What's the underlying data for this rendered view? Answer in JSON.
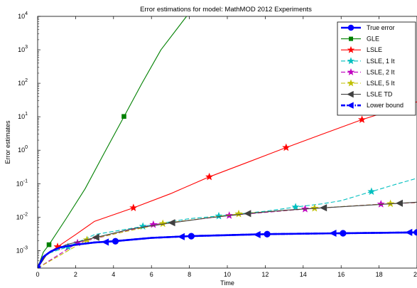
{
  "chart_data": {
    "type": "line",
    "title": "Error estimations for model: MathMOD 2012 Experiments",
    "xlabel": "Time",
    "ylabel": "Error estimates",
    "xlim": [
      0,
      20
    ],
    "ylim": [
      0.0003,
      10000
    ],
    "yscale": "log",
    "x_ticks": [
      "0",
      "2",
      "4",
      "6",
      "8",
      "10",
      "12",
      "14",
      "16",
      "18",
      "20"
    ],
    "y_ticks": [
      {
        "base": "10",
        "exp": "-3",
        "value": 0.001
      },
      {
        "base": "10",
        "exp": "-2",
        "value": 0.01
      },
      {
        "base": "10",
        "exp": "-1",
        "value": 0.1
      },
      {
        "base": "10",
        "exp": "0",
        "value": 1
      },
      {
        "base": "10",
        "exp": "1",
        "value": 10
      },
      {
        "base": "10",
        "exp": "2",
        "value": 100
      },
      {
        "base": "10",
        "exp": "3",
        "value": 1000
      },
      {
        "base": "10",
        "exp": "4",
        "value": 10000
      }
    ],
    "grid": false,
    "legend_position": "top-right",
    "series": [
      {
        "name": "True error",
        "color": "#0000ff",
        "marker": "circle",
        "line": "solid",
        "bold": true,
        "curve": [
          [
            0,
            0.0003
          ],
          [
            0.3,
            0.00065
          ],
          [
            0.7,
            0.00095
          ],
          [
            1.2,
            0.00125
          ],
          [
            2,
            0.0015
          ],
          [
            3,
            0.00175
          ],
          [
            4,
            0.0019
          ],
          [
            6,
            0.0024
          ],
          [
            8,
            0.0027
          ],
          [
            10,
            0.0029
          ],
          [
            12,
            0.0031
          ],
          [
            14,
            0.0032
          ],
          [
            16,
            0.0033
          ],
          [
            18,
            0.0034
          ],
          [
            20,
            0.0035
          ]
        ],
        "markers": [
          [
            0,
            0.0003
          ],
          [
            4.1,
            0.0019
          ],
          [
            8.1,
            0.0027
          ],
          [
            12.1,
            0.0031
          ],
          [
            16.1,
            0.0033
          ],
          [
            20,
            0.0035
          ]
        ]
      },
      {
        "name": "GLE",
        "color": "#008000",
        "marker": "square",
        "line": "solid",
        "bold": false,
        "curve": [
          [
            0,
            0.0003
          ],
          [
            0.3,
            0.0009
          ],
          [
            0.6,
            0.0015
          ],
          [
            1.5,
            0.009
          ],
          [
            2.5,
            0.07
          ],
          [
            3.5,
            0.8
          ],
          [
            4.55,
            10
          ],
          [
            5.5,
            100
          ],
          [
            6.5,
            1000
          ],
          [
            7.85,
            10000
          ]
        ],
        "markers": [
          [
            0.6,
            0.0015
          ],
          [
            4.55,
            10.2
          ]
        ]
      },
      {
        "name": "LSLE",
        "color": "#ff0000",
        "marker": "star",
        "line": "solid",
        "bold": false,
        "curve": [
          [
            0,
            0.0003
          ],
          [
            0.5,
            0.0008
          ],
          [
            1.05,
            0.0013
          ],
          [
            2,
            0.003
          ],
          [
            3,
            0.0075
          ],
          [
            5.05,
            0.019
          ],
          [
            7,
            0.05
          ],
          [
            9.05,
            0.16
          ],
          [
            11,
            0.42
          ],
          [
            13.1,
            1.2
          ],
          [
            15,
            3
          ],
          [
            17.1,
            8.2
          ],
          [
            19,
            18
          ],
          [
            20,
            28
          ]
        ],
        "markers": [
          [
            1.05,
            0.0013
          ],
          [
            5.05,
            0.019
          ],
          [
            9.05,
            0.16
          ],
          [
            13.1,
            1.2
          ],
          [
            17.1,
            8.2
          ]
        ]
      },
      {
        "name": "LSLE, 1 It",
        "color": "#00bfbf",
        "marker": "star",
        "line": "dashed",
        "bold": false,
        "curve": [
          [
            0,
            0.0003
          ],
          [
            0.5,
            0.0008
          ],
          [
            1.6,
            0.0013
          ],
          [
            3,
            0.003
          ],
          [
            5.55,
            0.0053
          ],
          [
            8,
            0.009
          ],
          [
            9.55,
            0.0108
          ],
          [
            12,
            0.015
          ],
          [
            13.6,
            0.02
          ],
          [
            15,
            0.025
          ],
          [
            16,
            0.031
          ],
          [
            17.6,
            0.058
          ],
          [
            19,
            0.1
          ],
          [
            20,
            0.145
          ]
        ],
        "markers": [
          [
            1.6,
            0.0013
          ],
          [
            5.55,
            0.0053
          ],
          [
            9.55,
            0.0108
          ],
          [
            13.6,
            0.02
          ],
          [
            17.6,
            0.058
          ]
        ]
      },
      {
        "name": "LSLE, 2 It",
        "color": "#bf00bf",
        "marker": "star",
        "line": "dashed",
        "bold": false,
        "curve": [
          [
            0,
            0.0003
          ],
          [
            2.1,
            0.0017
          ],
          [
            6.1,
            0.006
          ],
          [
            10.1,
            0.0112
          ],
          [
            14.1,
            0.0175
          ],
          [
            18.1,
            0.0245
          ],
          [
            20,
            0.027
          ]
        ],
        "markers": [
          [
            2.1,
            0.0017
          ],
          [
            6.1,
            0.006
          ],
          [
            10.1,
            0.0112
          ],
          [
            14.1,
            0.0175
          ],
          [
            18.1,
            0.0245
          ]
        ]
      },
      {
        "name": "LSLE, 5 It",
        "color": "#bfbf00",
        "marker": "star",
        "line": "dashed",
        "bold": false,
        "curve": [
          [
            0,
            0.0003
          ],
          [
            2.6,
            0.0021
          ],
          [
            6.6,
            0.0064
          ],
          [
            10.6,
            0.0125
          ],
          [
            14.6,
            0.0185
          ],
          [
            18.6,
            0.0252
          ],
          [
            20,
            0.0275
          ]
        ],
        "markers": [
          [
            2.6,
            0.0021
          ],
          [
            6.6,
            0.0064
          ],
          [
            10.6,
            0.0125
          ],
          [
            14.6,
            0.0185
          ],
          [
            18.6,
            0.0252
          ]
        ]
      },
      {
        "name": "LSLE TD",
        "color": "#404040",
        "marker": "triangle-left",
        "line": "solid",
        "bold": false,
        "curve": [
          [
            0,
            0.0003
          ],
          [
            0.5,
            0.0008
          ],
          [
            1.5,
            0.0015
          ],
          [
            3.1,
            0.0025
          ],
          [
            5,
            0.0045
          ],
          [
            7.1,
            0.0068
          ],
          [
            9,
            0.0095
          ],
          [
            11.1,
            0.0128
          ],
          [
            13,
            0.016
          ],
          [
            15.1,
            0.019
          ],
          [
            17,
            0.022
          ],
          [
            19.1,
            0.026
          ],
          [
            20,
            0.028
          ]
        ],
        "markers": [
          [
            3.1,
            0.0025
          ],
          [
            7.1,
            0.0068
          ],
          [
            11.1,
            0.0128
          ],
          [
            15.1,
            0.019
          ],
          [
            19.1,
            0.026
          ]
        ]
      },
      {
        "name": "Lower bound",
        "color": "#0000ff",
        "marker": "triangle-left",
        "line": "dashdot",
        "bold": true,
        "curve": [
          [
            0,
            0.0003
          ],
          [
            0.3,
            0.00065
          ],
          [
            0.7,
            0.00095
          ],
          [
            1.2,
            0.00125
          ],
          [
            2,
            0.0015
          ],
          [
            3,
            0.00175
          ],
          [
            4,
            0.0019
          ],
          [
            6,
            0.0024
          ],
          [
            8,
            0.0027
          ],
          [
            10,
            0.0029
          ],
          [
            12,
            0.0031
          ],
          [
            14,
            0.0032
          ],
          [
            16,
            0.0033
          ],
          [
            18,
            0.0034
          ],
          [
            20,
            0.0035
          ]
        ],
        "markers": [
          [
            3.6,
            0.0018
          ],
          [
            7.6,
            0.0026
          ],
          [
            11.6,
            0.003
          ],
          [
            15.6,
            0.0033
          ],
          [
            19.6,
            0.0035
          ]
        ]
      }
    ]
  }
}
